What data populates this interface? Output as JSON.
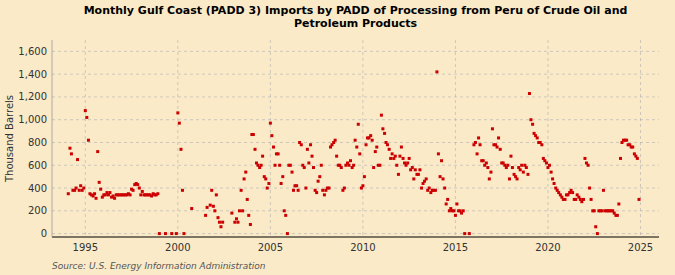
{
  "chart_data": {
    "type": "scatter",
    "title": "Monthly Gulf Coast (PADD 3) Imports by PADD of Processing from Peru of Crude Oil and\nPetroleum Products",
    "ylabel": "Thousand Barrels",
    "source": "Source: U.S. Energy Information Administration",
    "background_color": "#faeac8",
    "color": "#cc0000",
    "marker": "square",
    "grid": true,
    "xlim": [
      1993.2,
      2026.0
    ],
    "ylim": [
      -30,
      1700
    ],
    "xticks": [
      1995,
      2000,
      2005,
      2010,
      2015,
      2020,
      2025
    ],
    "yticks": [
      0,
      200,
      400,
      600,
      800,
      {
        "value": 1000,
        "label": "1,000"
      },
      {
        "value": 1200,
        "label": "1,200"
      },
      {
        "value": 1400,
        "label": "1,400"
      },
      {
        "value": 1600,
        "label": "1,600"
      }
    ],
    "x": [
      1994.08,
      1994.17,
      1994.25,
      1994.33,
      1994.42,
      1994.5,
      1994.58,
      1994.67,
      1994.75,
      1994.83,
      1994.92,
      1995.0,
      1995.08,
      1995.17,
      1995.25,
      1995.33,
      1995.42,
      1995.5,
      1995.58,
      1995.67,
      1995.75,
      1995.83,
      1995.92,
      1996.0,
      1996.08,
      1996.17,
      1996.25,
      1996.33,
      1996.42,
      1996.5,
      1996.58,
      1996.67,
      1996.75,
      1996.83,
      1996.92,
      1997.0,
      1997.08,
      1997.17,
      1997.25,
      1997.33,
      1997.42,
      1997.5,
      1997.58,
      1997.67,
      1997.75,
      1997.83,
      1997.92,
      1998.0,
      1998.08,
      1998.17,
      1998.25,
      1998.33,
      1998.42,
      1998.5,
      1998.58,
      1998.67,
      1998.75,
      1998.83,
      1998.92,
      1999.0,
      1999.33,
      1999.67,
      1999.92,
      2000.0,
      2000.08,
      2000.17,
      2000.25,
      2000.33,
      2000.75,
      2001.5,
      2001.58,
      2001.75,
      2001.83,
      2001.92,
      2002.0,
      2002.08,
      2002.17,
      2002.25,
      2002.33,
      2002.42,
      2002.92,
      2003.08,
      2003.17,
      2003.25,
      2003.33,
      2003.42,
      2003.5,
      2003.58,
      2003.67,
      2003.75,
      2003.83,
      2003.92,
      2004.0,
      2004.08,
      2004.17,
      2004.25,
      2004.33,
      2004.42,
      2004.5,
      2004.58,
      2004.67,
      2004.75,
      2004.83,
      2004.92,
      2005.0,
      2005.08,
      2005.17,
      2005.25,
      2005.33,
      2005.42,
      2005.5,
      2005.58,
      2005.67,
      2005.75,
      2005.83,
      2005.92,
      2006.0,
      2006.08,
      2006.17,
      2006.25,
      2006.33,
      2006.42,
      2006.5,
      2006.58,
      2006.67,
      2006.75,
      2006.83,
      2006.92,
      2007.0,
      2007.08,
      2007.17,
      2007.25,
      2007.33,
      2007.42,
      2007.5,
      2007.58,
      2007.67,
      2007.75,
      2007.83,
      2007.92,
      2008.0,
      2008.08,
      2008.17,
      2008.25,
      2008.33,
      2008.42,
      2008.5,
      2008.58,
      2008.67,
      2008.75,
      2008.83,
      2008.92,
      2009.0,
      2009.08,
      2009.17,
      2009.25,
      2009.33,
      2009.42,
      2009.5,
      2009.58,
      2009.67,
      2009.75,
      2009.83,
      2009.92,
      2010.0,
      2010.08,
      2010.17,
      2010.25,
      2010.33,
      2010.42,
      2010.5,
      2010.58,
      2010.67,
      2010.75,
      2010.83,
      2010.92,
      2011.0,
      2011.08,
      2011.17,
      2011.25,
      2011.33,
      2011.42,
      2011.5,
      2011.58,
      2011.67,
      2011.75,
      2011.83,
      2011.92,
      2012.0,
      2012.08,
      2012.17,
      2012.25,
      2012.33,
      2012.42,
      2012.5,
      2012.58,
      2012.67,
      2012.75,
      2012.83,
      2012.92,
      2013.0,
      2013.08,
      2013.17,
      2013.25,
      2013.33,
      2013.42,
      2013.5,
      2013.58,
      2013.67,
      2013.75,
      2013.83,
      2013.92,
      2014.0,
      2014.08,
      2014.17,
      2014.25,
      2014.33,
      2014.42,
      2014.5,
      2014.58,
      2014.67,
      2014.75,
      2014.83,
      2014.92,
      2015.0,
      2015.08,
      2015.17,
      2015.25,
      2015.33,
      2015.42,
      2015.5,
      2015.75,
      2016.0,
      2016.08,
      2016.17,
      2016.25,
      2016.33,
      2016.42,
      2016.5,
      2016.58,
      2016.67,
      2016.75,
      2016.83,
      2016.92,
      2017.0,
      2017.08,
      2017.17,
      2017.25,
      2017.33,
      2017.42,
      2017.5,
      2017.58,
      2017.67,
      2017.75,
      2017.83,
      2017.92,
      2018.0,
      2018.08,
      2018.17,
      2018.25,
      2018.33,
      2018.42,
      2018.5,
      2018.58,
      2018.67,
      2018.75,
      2018.83,
      2018.92,
      2019.0,
      2019.08,
      2019.17,
      2019.25,
      2019.33,
      2019.42,
      2019.5,
      2019.58,
      2019.67,
      2019.75,
      2019.83,
      2019.92,
      2020.0,
      2020.08,
      2020.17,
      2020.25,
      2020.33,
      2020.42,
      2020.5,
      2020.58,
      2020.67,
      2020.75,
      2020.83,
      2020.92,
      2021.0,
      2021.08,
      2021.17,
      2021.25,
      2021.33,
      2021.42,
      2021.5,
      2021.58,
      2021.67,
      2021.75,
      2021.83,
      2021.92,
      2022.0,
      2022.08,
      2022.17,
      2022.25,
      2022.33,
      2022.42,
      2022.5,
      2022.58,
      2022.67,
      2022.75,
      2022.83,
      2022.92,
      2023.0,
      2023.08,
      2023.17,
      2023.25,
      2023.33,
      2023.42,
      2023.5,
      2023.58,
      2023.67,
      2023.75,
      2023.83,
      2023.92,
      2024.0,
      2024.08,
      2024.17,
      2024.25,
      2024.33,
      2024.42,
      2024.5,
      2024.58,
      2024.67,
      2024.75,
      2024.83,
      2024.92
    ],
    "values": [
      350,
      750,
      700,
      380,
      380,
      400,
      650,
      380,
      420,
      380,
      400,
      1080,
      1020,
      820,
      350,
      340,
      330,
      350,
      310,
      720,
      450,
      390,
      320,
      340,
      340,
      360,
      340,
      360,
      320,
      330,
      310,
      340,
      340,
      340,
      340,
      340,
      340,
      340,
      340,
      350,
      340,
      390,
      380,
      430,
      440,
      430,
      400,
      340,
      370,
      340,
      340,
      340,
      340,
      340,
      330,
      350,
      340,
      340,
      350,
      0,
      0,
      0,
      0,
      1060,
      970,
      740,
      380,
      0,
      220,
      160,
      230,
      250,
      380,
      240,
      200,
      340,
      140,
      100,
      60,
      100,
      180,
      100,
      130,
      100,
      200,
      380,
      200,
      480,
      540,
      300,
      160,
      80,
      870,
      870,
      740,
      620,
      600,
      580,
      600,
      680,
      500,
      480,
      400,
      440,
      970,
      860,
      760,
      600,
      700,
      700,
      600,
      440,
      500,
      200,
      160,
      0,
      600,
      600,
      540,
      380,
      420,
      420,
      380,
      800,
      780,
      600,
      580,
      400,
      740,
      620,
      780,
      680,
      580,
      380,
      360,
      460,
      500,
      600,
      380,
      340,
      380,
      400,
      400,
      760,
      780,
      800,
      820,
      680,
      600,
      600,
      580,
      380,
      400,
      600,
      620,
      600,
      640,
      580,
      600,
      820,
      760,
      960,
      700,
      400,
      420,
      500,
      780,
      840,
      840,
      860,
      820,
      580,
      720,
      760,
      600,
      600,
      1040,
      920,
      880,
      800,
      780,
      740,
      660,
      700,
      660,
      680,
      600,
      520,
      680,
      760,
      660,
      620,
      600,
      620,
      660,
      560,
      580,
      480,
      560,
      520,
      520,
      560,
      400,
      440,
      460,
      480,
      380,
      400,
      360,
      380,
      380,
      380,
      1420,
      700,
      500,
      640,
      480,
      400,
      260,
      300,
      200,
      220,
      200,
      200,
      160,
      260,
      200,
      200,
      180,
      200,
      0,
      0,
      780,
      800,
      700,
      840,
      780,
      640,
      640,
      600,
      620,
      580,
      480,
      540,
      920,
      780,
      780,
      760,
      840,
      740,
      620,
      620,
      600,
      580,
      600,
      480,
      680,
      580,
      520,
      500,
      480,
      580,
      560,
      600,
      540,
      600,
      580,
      520,
      1230,
      1000,
      960,
      880,
      860,
      840,
      800,
      800,
      780,
      660,
      640,
      620,
      580,
      600,
      540,
      480,
      440,
      400,
      380,
      360,
      340,
      320,
      300,
      300,
      340,
      340,
      360,
      380,
      360,
      300,
      300,
      340,
      320,
      300,
      280,
      300,
      660,
      620,
      600,
      400,
      300,
      200,
      200,
      60,
      0,
      200,
      200,
      200,
      380,
      200,
      200,
      200,
      200,
      200,
      200,
      180,
      160,
      160,
      260,
      660,
      800,
      820,
      820,
      820,
      780,
      780,
      760,
      760,
      700,
      680,
      660,
      300
    ]
  }
}
